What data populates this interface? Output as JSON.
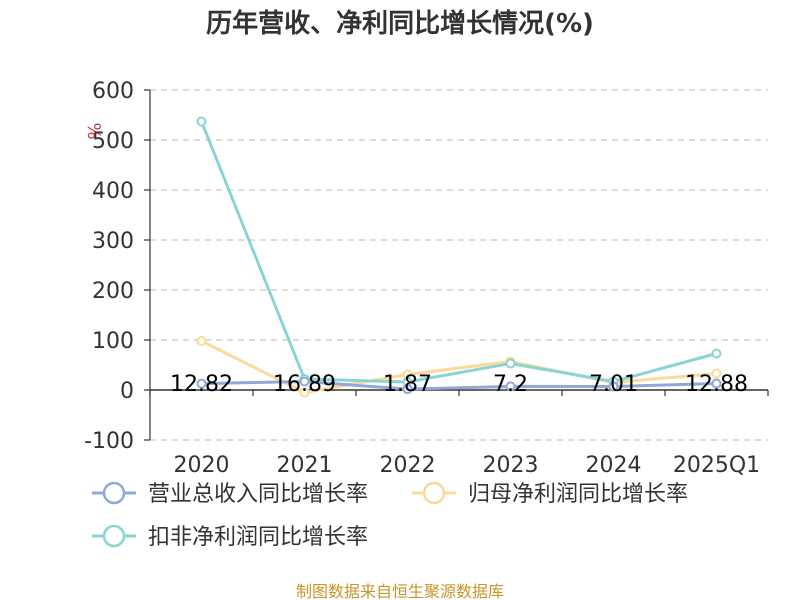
{
  "chart_data": {
    "type": "line",
    "title": "历年营收、净利同比增长情况(%)",
    "unit": "%",
    "categories": [
      "2020",
      "2021",
      "2022",
      "2023",
      "2024",
      "2025Q1"
    ],
    "ylim": [
      -100,
      600
    ],
    "yticks": [
      -100,
      0,
      100,
      200,
      300,
      400,
      500,
      600
    ],
    "grid": true,
    "legend_position": "bottom",
    "series": [
      {
        "name": "营业总收入同比增长率",
        "color": "#8fa8d8",
        "values": [
          12.82,
          16.89,
          1.87,
          7.2,
          7.01,
          12.88
        ],
        "labels": [
          "12.82",
          "16.89",
          "1.87",
          "7.2",
          "7.01",
          "12.88"
        ]
      },
      {
        "name": "归母净利润同比增长率",
        "color": "#fbd99a",
        "values": [
          98,
          -5,
          31,
          57,
          15,
          33
        ]
      },
      {
        "name": "扣非净利润同比增长率",
        "color": "#8ad4d6",
        "values": [
          537,
          22,
          16,
          53,
          17,
          73
        ]
      }
    ]
  },
  "source": "制图数据来自恒生聚源数据库"
}
